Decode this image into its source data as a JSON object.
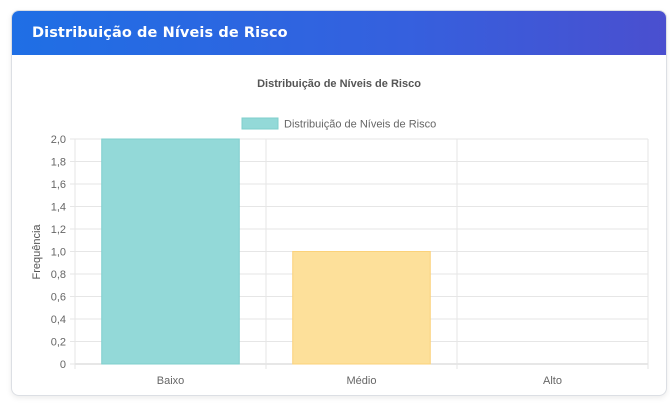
{
  "panel": {
    "title": "Distribuição de Níveis de Risco"
  },
  "chart_data": {
    "type": "bar",
    "title": "Distribuição de Níveis de Risco",
    "xlabel": "",
    "ylabel": "Frequência",
    "categories": [
      "Baixo",
      "Médio",
      "Alto"
    ],
    "series": [
      {
        "name": "Distribuição de Níveis de Risco",
        "values": [
          2,
          1,
          0
        ],
        "colors": [
          "#93d9d8",
          "#fde09a",
          "#f7a9b8"
        ],
        "borders": [
          "#7fcfcd",
          "#fbd27a",
          "#f28fa3"
        ]
      }
    ],
    "ylim": [
      0,
      2
    ],
    "yticks": [
      "0",
      "0,2",
      "0,4",
      "0,6",
      "0,8",
      "1,0",
      "1,2",
      "1,4",
      "1,6",
      "1,8",
      "2,0"
    ],
    "legend": "top",
    "grid": true,
    "legend_color": "#93d9d8"
  }
}
